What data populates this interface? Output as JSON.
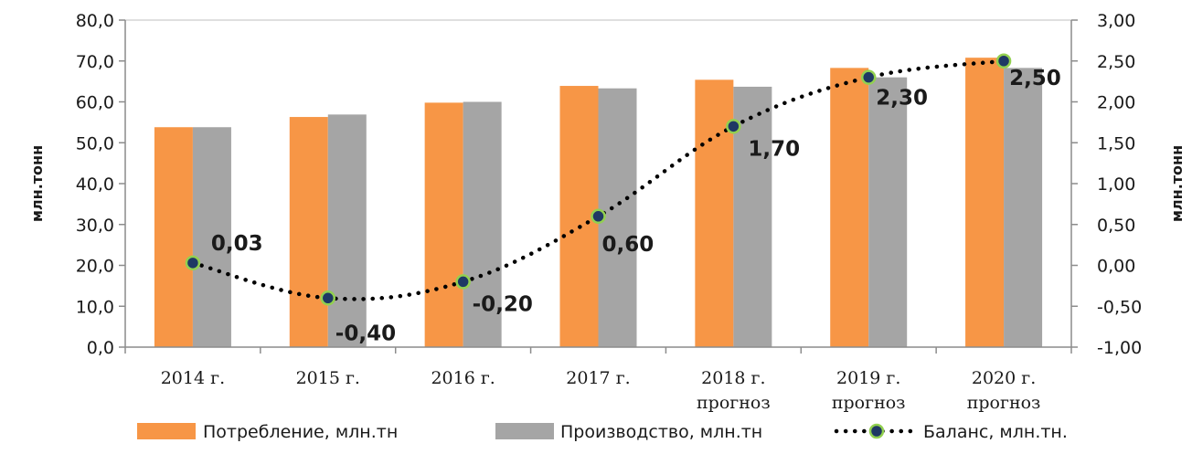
{
  "chart_data": {
    "type": "bar",
    "categories": [
      [
        "2014 г."
      ],
      [
        "2015 г."
      ],
      [
        "2016 г."
      ],
      [
        "2017 г."
      ],
      [
        "2018 г.",
        "прогноз"
      ],
      [
        "2019 г.",
        "прогноз"
      ],
      [
        "2020 г.",
        "прогноз"
      ]
    ],
    "series": [
      {
        "name": "Потребление, млн.тн",
        "type": "bar",
        "axis": "left",
        "color": "#f79646",
        "values": [
          53.8,
          56.3,
          59.8,
          63.9,
          65.4,
          68.3,
          70.8
        ]
      },
      {
        "name": "Производство, млн.тн",
        "type": "bar",
        "axis": "left",
        "color": "#a5a5a5",
        "values": [
          53.8,
          56.9,
          60.0,
          63.3,
          63.7,
          66.0,
          68.3
        ]
      },
      {
        "name": "Баланс, млн.тн.",
        "type": "line",
        "style": "dotted",
        "axis": "right",
        "line_color": "#000000",
        "marker_fill": "#1f3864",
        "marker_edge": "#92d050",
        "values": [
          0.03,
          -0.4,
          -0.2,
          0.6,
          1.7,
          2.3,
          2.5
        ],
        "labels": [
          "0,03",
          "-0,40",
          "-0,20",
          "0,60",
          "1,70",
          "2,30",
          "2,50"
        ]
      }
    ],
    "y_left": {
      "label": "млн.тонн",
      "ylim": [
        0,
        80
      ],
      "ticks": [
        "0,0",
        "10,0",
        "20,0",
        "30,0",
        "40,0",
        "50,0",
        "60,0",
        "70,0",
        "80,0"
      ]
    },
    "y_right": {
      "label": "млн.тонн",
      "ylim": [
        -1,
        3
      ],
      "ticks": [
        "-1,00",
        "-0,50",
        "0,00",
        "0,50",
        "1,00",
        "1,50",
        "2,00",
        "2,50",
        "3,00"
      ]
    },
    "grid": false,
    "legend": "bottom"
  }
}
